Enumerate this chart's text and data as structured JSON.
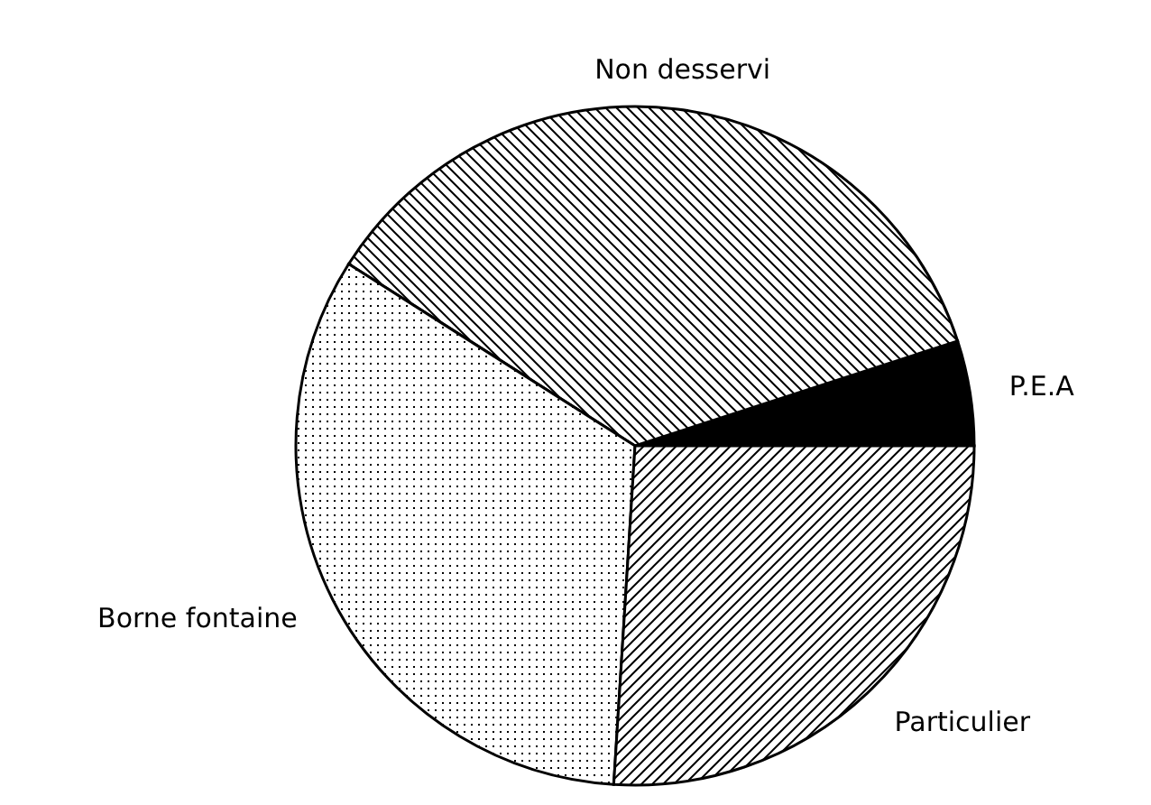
{
  "chart_data": {
    "type": "pie",
    "categories": [
      "P.E.A",
      "Non desservi",
      "Borne fontaine",
      "Particulier"
    ],
    "values": [
      5,
      36,
      33,
      26
    ],
    "colors": [
      "#000000",
      "#000000",
      "#000000",
      "#000000"
    ]
  }
}
